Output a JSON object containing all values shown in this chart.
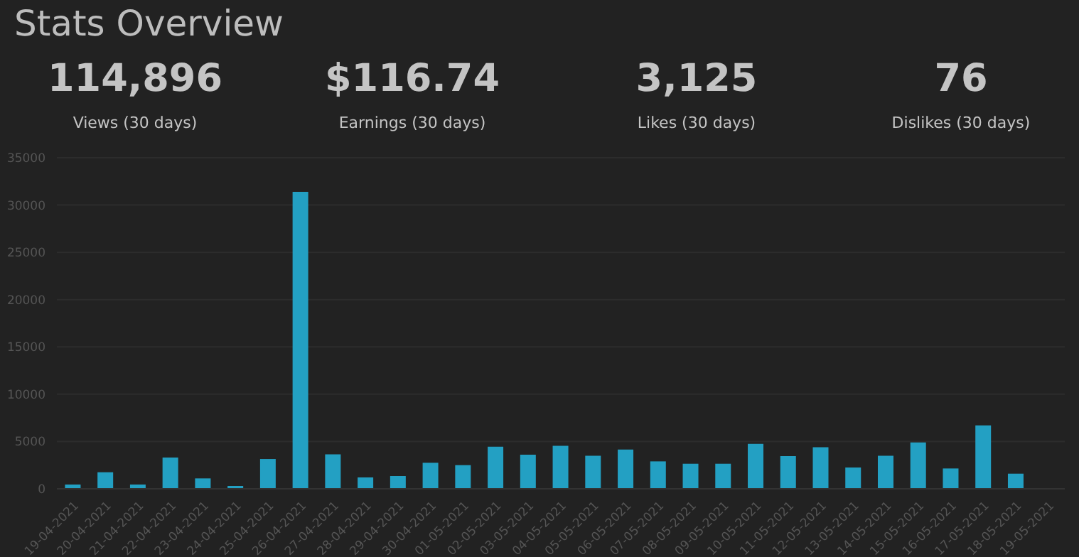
{
  "chart_data": {
    "type": "bar",
    "title": "Stats Overview",
    "annotations": [
      "114,896",
      "Views (30 days)",
      "$116.74",
      "Earnings (30 days)",
      "3,125",
      "Likes (30 days)",
      "76",
      "Dislikes (30 days)"
    ],
    "categories": [
      "19-04-2021",
      "20-04-2021",
      "21-04-2021",
      "22-04-2021",
      "23-04-2021",
      "24-04-2021",
      "25-04-2021",
      "26-04-2021",
      "27-04-2021",
      "28-04-2021",
      "29-04-2021",
      "30-04-2021",
      "01-05-2021",
      "02-05-2021",
      "03-05-2021",
      "04-05-2021",
      "05-05-2021",
      "06-05-2021",
      "07-05-2021",
      "08-05-2021",
      "09-05-2021",
      "10-05-2021",
      "11-05-2021",
      "12-05-2021",
      "13-05-2021",
      "14-05-2021",
      "15-05-2021",
      "16-05-2021",
      "17-05-2021",
      "18-05-2021",
      "19-05-2021"
    ],
    "values": [
      450,
      1750,
      450,
      3300,
      1100,
      300,
      3150,
      31400,
      3650,
      1200,
      1350,
      2750,
      2500,
      4450,
      3600,
      4550,
      3500,
      4150,
      2900,
      2650,
      2650,
      4750,
      3450,
      4400,
      2250,
      3500,
      4900,
      2150,
      6700,
      1600,
      50
    ],
    "color": "#23a0c3",
    "ylim": [
      0,
      35000
    ],
    "yticks": [
      0,
      5000,
      10000,
      15000,
      20000,
      25000,
      30000,
      35000
    ],
    "grid": "y"
  }
}
